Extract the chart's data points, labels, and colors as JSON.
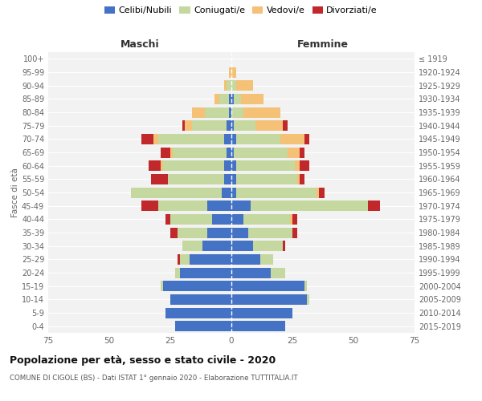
{
  "age_groups": [
    "0-4",
    "5-9",
    "10-14",
    "15-19",
    "20-24",
    "25-29",
    "30-34",
    "35-39",
    "40-44",
    "45-49",
    "50-54",
    "55-59",
    "60-64",
    "65-69",
    "70-74",
    "75-79",
    "80-84",
    "85-89",
    "90-94",
    "95-99",
    "100+"
  ],
  "birth_years": [
    "2015-2019",
    "2010-2014",
    "2005-2009",
    "2000-2004",
    "1995-1999",
    "1990-1994",
    "1985-1989",
    "1980-1984",
    "1975-1979",
    "1970-1974",
    "1965-1969",
    "1960-1964",
    "1955-1959",
    "1950-1954",
    "1945-1949",
    "1940-1944",
    "1935-1939",
    "1930-1934",
    "1925-1929",
    "1920-1924",
    "≤ 1919"
  ],
  "maschi": {
    "celibi": [
      23,
      27,
      25,
      28,
      21,
      17,
      12,
      10,
      8,
      10,
      4,
      3,
      3,
      2,
      3,
      2,
      1,
      1,
      0,
      0,
      0
    ],
    "coniugati": [
      0,
      0,
      0,
      1,
      2,
      4,
      8,
      12,
      17,
      20,
      37,
      23,
      25,
      22,
      27,
      14,
      10,
      4,
      2,
      0,
      0
    ],
    "vedovi": [
      0,
      0,
      0,
      0,
      0,
      0,
      0,
      0,
      0,
      0,
      0,
      0,
      1,
      1,
      2,
      3,
      5,
      2,
      1,
      1,
      0
    ],
    "divorziati": [
      0,
      0,
      0,
      0,
      0,
      1,
      0,
      3,
      2,
      7,
      0,
      7,
      5,
      4,
      5,
      1,
      0,
      0,
      0,
      0,
      0
    ]
  },
  "femmine": {
    "nubili": [
      22,
      25,
      31,
      30,
      16,
      12,
      9,
      7,
      5,
      8,
      2,
      2,
      2,
      1,
      2,
      1,
      0,
      1,
      0,
      0,
      0
    ],
    "coniugate": [
      0,
      0,
      1,
      1,
      6,
      5,
      12,
      18,
      19,
      48,
      33,
      25,
      24,
      22,
      18,
      9,
      5,
      3,
      2,
      0,
      0
    ],
    "vedove": [
      0,
      0,
      0,
      0,
      0,
      0,
      0,
      0,
      1,
      0,
      1,
      1,
      2,
      5,
      10,
      11,
      15,
      9,
      7,
      2,
      0
    ],
    "divorziate": [
      0,
      0,
      0,
      0,
      0,
      0,
      1,
      2,
      2,
      5,
      2,
      2,
      4,
      2,
      2,
      2,
      0,
      0,
      0,
      0,
      0
    ]
  },
  "colors": {
    "celibi": "#4472C4",
    "coniugati": "#C5D8A0",
    "vedovi": "#F4C176",
    "divorziati": "#C0282C"
  },
  "xlim": 75,
  "title": "Popolazione per età, sesso e stato civile - 2020",
  "subtitle": "COMUNE DI CIGOLE (BS) - Dati ISTAT 1° gennaio 2020 - Elaborazione TUTTITALIA.IT",
  "ylabel_left": "Fasce di età",
  "xlabel_left": "Maschi",
  "xlabel_right": "Femmine",
  "legend_labels": [
    "Celibi/Nubili",
    "Coniugati/e",
    "Vedovi/e",
    "Divorziati/e"
  ],
  "bg_color": "#f2f2f2",
  "grid_color": "#ffffff",
  "tick_color": "#666666"
}
